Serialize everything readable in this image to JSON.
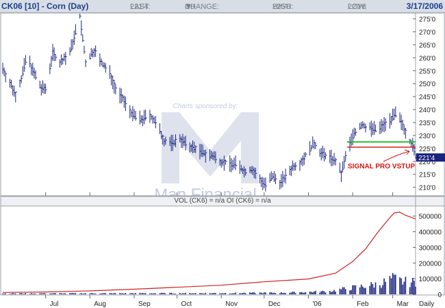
{
  "header": {
    "title": "CK06 [10] - Corn (Day)",
    "last_label": "LAST:",
    "last_value": "221'4",
    "change_label": "CHANGE:",
    "change_icon": "triangle-down-icon",
    "change_value": "3'0",
    "high_label": "HIGH:",
    "high_value": "225'0",
    "low_label": "LOW:",
    "low_value": "220'6",
    "date": "3/17/2006"
  },
  "watermark": {
    "sponsor_text": "Charts sponsored by:",
    "brand_text": "Man Financial"
  },
  "annotation": {
    "text": "SIGNAL PRO VSTUP",
    "price_tag": "221'4"
  },
  "volume_header": "VOL (CK6) = n/a OI (CK6) = n/a",
  "colors": {
    "bars": "#1a237e",
    "oi_line": "#d02020",
    "green_line": "#22c022",
    "red_line": "#d02020",
    "annotation": "#dd1010",
    "watermark": "#c3cbdf"
  },
  "chart_data": [
    {
      "type": "ohlc",
      "x_axis": "date",
      "x_start": "2005-06-01",
      "x_end": "2006-03-17",
      "months": [
        "Jul",
        "Aug",
        "Sep",
        "Oct",
        "Nov",
        "Dec",
        "'06",
        "Feb",
        "Mar"
      ],
      "month_dates": [
        "2005-07-01",
        "2005-08-01",
        "2005-09-01",
        "2005-10-01",
        "2005-11-01",
        "2005-12-01",
        "2006-01-01",
        "2006-02-01",
        "2006-03-01"
      ],
      "x_end_label": "Daily",
      "ylim": [
        207,
        277
      ],
      "y_ticks": [
        "210'0",
        "215'0",
        "220'0",
        "225'0",
        "230'0",
        "235'0",
        "240'0",
        "245'0",
        "250'0",
        "255'0",
        "260'0",
        "265'0",
        "270'0",
        "275'0"
      ],
      "y_tick_values": [
        210,
        215,
        220,
        225,
        230,
        235,
        240,
        245,
        250,
        255,
        260,
        265,
        270,
        275
      ],
      "price_path": [
        [
          "2005-06-01",
          256
        ],
        [
          "2005-06-06",
          250
        ],
        [
          "2005-06-10",
          246
        ],
        [
          "2005-06-14",
          252
        ],
        [
          "2005-06-18",
          261
        ],
        [
          "2005-06-22",
          255
        ],
        [
          "2005-06-28",
          248
        ],
        [
          "2005-07-01",
          248
        ],
        [
          "2005-07-06",
          262
        ],
        [
          "2005-07-11",
          258
        ],
        [
          "2005-07-18",
          262
        ],
        [
          "2005-07-25",
          276
        ],
        [
          "2005-07-29",
          258
        ],
        [
          "2005-08-04",
          263
        ],
        [
          "2005-08-09",
          258
        ],
        [
          "2005-08-15",
          254
        ],
        [
          "2005-08-19",
          248
        ],
        [
          "2005-08-24",
          244
        ],
        [
          "2005-08-31",
          238
        ],
        [
          "2005-09-06",
          236
        ],
        [
          "2005-09-12",
          238
        ],
        [
          "2005-09-17",
          234
        ],
        [
          "2005-09-22",
          228
        ],
        [
          "2005-09-28",
          227
        ],
        [
          "2005-10-03",
          229
        ],
        [
          "2005-10-08",
          226
        ],
        [
          "2005-10-14",
          225
        ],
        [
          "2005-10-20",
          223
        ],
        [
          "2005-10-26",
          222
        ],
        [
          "2005-11-01",
          220
        ],
        [
          "2005-11-07",
          219
        ],
        [
          "2005-11-12",
          219
        ],
        [
          "2005-11-17",
          216
        ],
        [
          "2005-11-22",
          217
        ],
        [
          "2005-11-28",
          213
        ],
        [
          "2005-12-02",
          211
        ],
        [
          "2005-12-07",
          214
        ],
        [
          "2005-12-12",
          212
        ],
        [
          "2005-12-16",
          214
        ],
        [
          "2005-12-21",
          218
        ],
        [
          "2005-12-27",
          220
        ],
        [
          "2006-01-01",
          224
        ],
        [
          "2006-01-05",
          227
        ],
        [
          "2006-01-10",
          223
        ],
        [
          "2006-01-15",
          222
        ],
        [
          "2006-01-20",
          220
        ],
        [
          "2006-01-24",
          215
        ],
        [
          "2006-01-28",
          224
        ],
        [
          "2006-02-02",
          231
        ],
        [
          "2006-02-07",
          234
        ],
        [
          "2006-02-13",
          233
        ],
        [
          "2006-02-18",
          232
        ],
        [
          "2006-02-22",
          234
        ],
        [
          "2006-02-27",
          236
        ],
        [
          "2006-03-03",
          238
        ],
        [
          "2006-03-06",
          236
        ],
        [
          "2006-03-09",
          233
        ],
        [
          "2006-03-13",
          228
        ],
        [
          "2006-03-15",
          226
        ],
        [
          "2006-03-17",
          222
        ]
      ],
      "signal_lines": [
        {
          "name": "green",
          "y": 227.5,
          "from": "2006-01-28",
          "to": "2006-03-17"
        },
        {
          "name": "red",
          "y": 225.5,
          "from": "2006-01-28",
          "to": "2006-03-17"
        }
      ],
      "last_price": 221.5
    },
    {
      "type": "bar+line",
      "x_axis": "date",
      "ylim": [
        0,
        560000
      ],
      "y_ticks": [
        "0",
        "100000",
        "200000",
        "300000",
        "400000",
        "500000"
      ],
      "y_tick_values": [
        0,
        100000,
        200000,
        300000,
        400000,
        500000
      ],
      "open_interest_path": [
        [
          "2005-06-01",
          12000
        ],
        [
          "2005-07-01",
          15000
        ],
        [
          "2005-08-01",
          22000
        ],
        [
          "2005-09-01",
          33000
        ],
        [
          "2005-10-01",
          45000
        ],
        [
          "2005-11-01",
          58000
        ],
        [
          "2005-12-01",
          80000
        ],
        [
          "2006-01-01",
          98000
        ],
        [
          "2006-01-20",
          135000
        ],
        [
          "2006-02-01",
          210000
        ],
        [
          "2006-02-10",
          290000
        ],
        [
          "2006-02-18",
          390000
        ],
        [
          "2006-02-27",
          490000
        ],
        [
          "2006-03-02",
          520000
        ],
        [
          "2006-03-06",
          525000
        ],
        [
          "2006-03-10",
          505000
        ],
        [
          "2006-03-17",
          482000
        ]
      ],
      "volume_path": [
        [
          "2005-06-01",
          6000
        ],
        [
          "2005-09-01",
          7000
        ],
        [
          "2005-11-01",
          8000
        ],
        [
          "2005-12-15",
          11000
        ],
        [
          "2006-01-15",
          20000
        ],
        [
          "2006-02-01",
          45000
        ],
        [
          "2006-02-20",
          70000
        ],
        [
          "2006-03-01",
          105000
        ],
        [
          "2006-03-08",
          85000
        ],
        [
          "2006-03-17",
          80000
        ]
      ]
    }
  ]
}
